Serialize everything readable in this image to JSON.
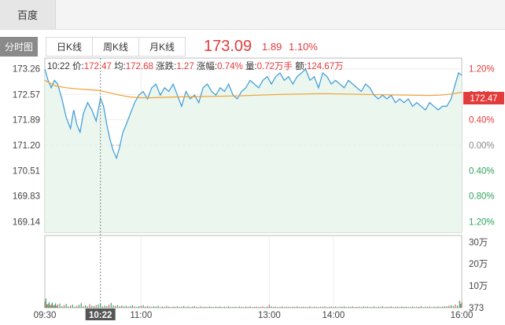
{
  "app_tab": "百度",
  "tabs": [
    "分时图",
    "日K线",
    "周K线",
    "月K线"
  ],
  "quote": {
    "price": "173.09",
    "change": "1.89",
    "change_pct": "1.10%"
  },
  "info": {
    "time": "10:22",
    "price_label": "价:",
    "price": "172.47",
    "avg_label": "均:",
    "avg": "172.68",
    "change_label": "涨跌:",
    "change": "1.27",
    "pct_label": "涨幅:",
    "pct": "0.74%",
    "volume_label": "量:",
    "volume": "0.72万手",
    "amount_label": "额:",
    "amount": "124.67万"
  },
  "chart_data": {
    "type": "line",
    "prev_close": 171.2,
    "ylim": [
      168.85,
      173.55
    ],
    "price_ticks": [
      "173.26",
      "172.57",
      "171.89",
      "171.20",
      "170.51",
      "169.83",
      "169.14"
    ],
    "price_tick_values": [
      173.26,
      172.57,
      171.89,
      171.2,
      170.51,
      169.83,
      169.14
    ],
    "pct_ticks": [
      "1.20%",
      "0.80%",
      "0.40%",
      "0.00%",
      "0.40%",
      "0.80%",
      "1.20%"
    ],
    "x_ticks": [
      "09:30",
      "11:00",
      "13:00",
      "14:00",
      "16:00"
    ],
    "x_tick_minutes": [
      0,
      90,
      210,
      270,
      390
    ],
    "cursor": {
      "minute": 52,
      "label": "10:22"
    },
    "current_price_tag": "172.47",
    "volume_ticks": [
      "30万",
      "20万",
      "10万",
      "373"
    ],
    "volume_tick_values": [
      300000,
      200000,
      100000,
      0
    ],
    "series": [
      {
        "role": "price",
        "color": "#3a9ad9",
        "x": [
          0,
          3,
          6,
          9,
          12,
          16,
          20,
          24,
          27,
          30,
          33,
          36,
          40,
          44,
          48,
          52,
          55,
          58,
          61,
          64,
          67,
          70,
          73,
          76,
          80,
          84,
          88,
          92,
          96,
          100,
          104,
          108,
          112,
          116,
          120,
          124,
          128,
          132,
          136,
          140,
          144,
          148,
          152,
          156,
          160,
          164,
          168,
          172,
          176,
          180,
          184,
          188,
          192,
          196,
          200,
          204,
          208,
          212,
          216,
          220,
          224,
          228,
          232,
          236,
          240,
          244,
          248,
          252,
          256,
          260,
          264,
          268,
          272,
          276,
          280,
          284,
          288,
          292,
          296,
          300,
          304,
          308,
          312,
          316,
          320,
          324,
          328,
          332,
          336,
          340,
          344,
          348,
          352,
          356,
          360,
          364,
          368,
          372,
          376,
          380,
          384,
          387,
          390
        ],
        "y": [
          173.25,
          172.95,
          172.75,
          172.95,
          172.85,
          172.45,
          171.95,
          171.65,
          172.15,
          171.75,
          171.55,
          172.05,
          172.35,
          172.15,
          171.85,
          172.47,
          172.25,
          171.75,
          171.35,
          171.05,
          170.85,
          171.15,
          171.55,
          171.75,
          172.05,
          172.35,
          172.55,
          172.65,
          172.45,
          172.75,
          172.85,
          172.55,
          172.75,
          172.65,
          172.85,
          172.55,
          172.25,
          172.65,
          172.45,
          172.55,
          172.35,
          172.75,
          172.85,
          172.65,
          172.55,
          172.75,
          172.65,
          172.85,
          172.55,
          172.45,
          172.65,
          172.75,
          172.95,
          172.85,
          172.75,
          172.95,
          173.05,
          172.85,
          173.05,
          173.15,
          172.95,
          173.05,
          172.85,
          173.05,
          173.15,
          173.25,
          172.95,
          173.05,
          172.75,
          173.15,
          173.05,
          172.85,
          172.95,
          172.85,
          172.75,
          172.95,
          172.85,
          172.75,
          172.65,
          172.85,
          172.75,
          172.55,
          172.45,
          172.55,
          172.45,
          172.55,
          172.35,
          172.45,
          172.35,
          172.45,
          172.25,
          172.35,
          172.25,
          172.15,
          172.35,
          172.25,
          172.15,
          172.25,
          172.25,
          172.45,
          172.85,
          173.15,
          173.09
        ]
      },
      {
        "role": "average",
        "color": "#f0a030",
        "x": [
          0,
          10,
          20,
          30,
          40,
          50,
          60,
          70,
          80,
          90,
          100,
          120,
          140,
          160,
          180,
          200,
          220,
          240,
          260,
          280,
          300,
          320,
          340,
          360,
          370,
          380,
          390
        ],
        "y": [
          172.95,
          172.8,
          172.75,
          172.72,
          172.7,
          172.68,
          172.62,
          172.55,
          172.5,
          172.48,
          172.48,
          172.5,
          172.51,
          172.52,
          172.53,
          172.55,
          172.57,
          172.58,
          172.59,
          172.58,
          172.57,
          172.56,
          172.55,
          172.54,
          172.55,
          172.58,
          172.63
        ]
      }
    ],
    "volume": [
      [
        0,
        28000
      ],
      [
        1,
        42000
      ],
      [
        2,
        14000
      ],
      [
        3,
        18000
      ],
      [
        4,
        26000
      ],
      [
        5,
        11000
      ],
      [
        6,
        16000
      ],
      [
        7,
        24000
      ],
      [
        8,
        9000
      ],
      [
        9,
        13000
      ],
      [
        10,
        20000
      ],
      [
        11,
        8000
      ],
      [
        12,
        15000
      ],
      [
        14,
        19000
      ],
      [
        16,
        7000
      ],
      [
        18,
        12000
      ],
      [
        20,
        17000
      ],
      [
        22,
        6000
      ],
      [
        24,
        10000
      ],
      [
        26,
        14000
      ],
      [
        28,
        5000
      ],
      [
        30,
        9000
      ],
      [
        32,
        13000
      ],
      [
        34,
        21000
      ],
      [
        36,
        8000
      ],
      [
        38,
        11000
      ],
      [
        40,
        6000
      ],
      [
        42,
        16000
      ],
      [
        44,
        9000
      ],
      [
        46,
        7000
      ],
      [
        48,
        12000
      ],
      [
        50,
        15000
      ],
      [
        52,
        18000
      ],
      [
        54,
        6000
      ],
      [
        56,
        10000
      ],
      [
        58,
        8000
      ],
      [
        60,
        14000
      ],
      [
        62,
        22000
      ],
      [
        64,
        11000
      ],
      [
        66,
        9000
      ],
      [
        68,
        12000
      ],
      [
        70,
        7000
      ],
      [
        72,
        10000
      ],
      [
        74,
        6000
      ],
      [
        76,
        9000
      ],
      [
        78,
        5000
      ],
      [
        80,
        8000
      ],
      [
        82,
        11000
      ],
      [
        84,
        6000
      ],
      [
        86,
        4000
      ],
      [
        88,
        7000
      ],
      [
        90,
        9000
      ],
      [
        92,
        12000
      ],
      [
        94,
        5000
      ],
      [
        96,
        8000
      ],
      [
        98,
        6000
      ],
      [
        100,
        4000
      ],
      [
        102,
        7000
      ],
      [
        104,
        5000
      ],
      [
        106,
        9000
      ],
      [
        108,
        3000
      ],
      [
        110,
        6000
      ],
      [
        112,
        4000
      ],
      [
        114,
        8000
      ],
      [
        116,
        5000
      ],
      [
        118,
        3000
      ],
      [
        120,
        6000
      ],
      [
        122,
        4000
      ],
      [
        124,
        7000
      ],
      [
        126,
        3000
      ],
      [
        128,
        5000
      ],
      [
        130,
        8000
      ],
      [
        132,
        4000
      ],
      [
        134,
        6000
      ],
      [
        136,
        3000
      ],
      [
        138,
        5000
      ],
      [
        140,
        7000
      ],
      [
        142,
        4000
      ],
      [
        144,
        3000
      ],
      [
        146,
        6000
      ],
      [
        148,
        4000
      ],
      [
        150,
        5000
      ],
      [
        152,
        3000
      ],
      [
        154,
        6000
      ],
      [
        156,
        4000
      ],
      [
        158,
        3000
      ],
      [
        160,
        5000
      ],
      [
        162,
        4000
      ],
      [
        164,
        6000
      ],
      [
        166,
        3000
      ],
      [
        168,
        5000
      ],
      [
        170,
        4000
      ],
      [
        172,
        7000
      ],
      [
        174,
        3000
      ],
      [
        176,
        4000
      ],
      [
        178,
        5000
      ],
      [
        180,
        3000
      ],
      [
        182,
        6000
      ],
      [
        184,
        4000
      ],
      [
        186,
        3000
      ],
      [
        188,
        5000
      ],
      [
        190,
        4000
      ],
      [
        192,
        6000
      ],
      [
        194,
        3000
      ],
      [
        196,
        4000
      ],
      [
        198,
        5000
      ],
      [
        200,
        3000
      ],
      [
        202,
        4000
      ],
      [
        204,
        6000
      ],
      [
        206,
        3000
      ],
      [
        208,
        5000
      ],
      [
        210,
        14000
      ],
      [
        212,
        6000
      ],
      [
        214,
        4000
      ],
      [
        216,
        5000
      ],
      [
        218,
        3000
      ],
      [
        220,
        4000
      ],
      [
        222,
        6000
      ],
      [
        224,
        3000
      ],
      [
        226,
        5000
      ],
      [
        228,
        4000
      ],
      [
        230,
        3000
      ],
      [
        232,
        5000
      ],
      [
        234,
        4000
      ],
      [
        236,
        6000
      ],
      [
        238,
        3000
      ],
      [
        240,
        4000
      ],
      [
        242,
        5000
      ],
      [
        244,
        3000
      ],
      [
        246,
        4000
      ],
      [
        248,
        6000
      ],
      [
        250,
        3000
      ],
      [
        252,
        5000
      ],
      [
        254,
        4000
      ],
      [
        256,
        3000
      ],
      [
        258,
        5000
      ],
      [
        260,
        4000
      ],
      [
        262,
        6000
      ],
      [
        264,
        3000
      ],
      [
        266,
        4000
      ],
      [
        268,
        5000
      ],
      [
        270,
        4000
      ],
      [
        272,
        6000
      ],
      [
        274,
        3000
      ],
      [
        276,
        5000
      ],
      [
        278,
        4000
      ],
      [
        280,
        7000
      ],
      [
        282,
        3000
      ],
      [
        284,
        5000
      ],
      [
        286,
        4000
      ],
      [
        288,
        6000
      ],
      [
        290,
        3000
      ],
      [
        292,
        4000
      ],
      [
        294,
        5000
      ],
      [
        296,
        3000
      ],
      [
        298,
        6000
      ],
      [
        300,
        4000
      ],
      [
        302,
        5000
      ],
      [
        304,
        3000
      ],
      [
        306,
        4000
      ],
      [
        308,
        6000
      ],
      [
        310,
        3000
      ],
      [
        312,
        5000
      ],
      [
        314,
        4000
      ],
      [
        316,
        7000
      ],
      [
        318,
        3000
      ],
      [
        320,
        5000
      ],
      [
        322,
        4000
      ],
      [
        324,
        6000
      ],
      [
        326,
        3000
      ],
      [
        328,
        4000
      ],
      [
        330,
        5000
      ],
      [
        332,
        3000
      ],
      [
        334,
        6000
      ],
      [
        336,
        4000
      ],
      [
        338,
        5000
      ],
      [
        340,
        3000
      ],
      [
        342,
        4000
      ],
      [
        344,
        6000
      ],
      [
        346,
        3000
      ],
      [
        348,
        5000
      ],
      [
        350,
        4000
      ],
      [
        352,
        7000
      ],
      [
        354,
        3000
      ],
      [
        356,
        5000
      ],
      [
        358,
        4000
      ],
      [
        360,
        6000
      ],
      [
        362,
        3000
      ],
      [
        364,
        5000
      ],
      [
        366,
        4000
      ],
      [
        368,
        6000
      ],
      [
        370,
        4000
      ],
      [
        372,
        5000
      ],
      [
        374,
        7000
      ],
      [
        376,
        6000
      ],
      [
        378,
        9000
      ],
      [
        380,
        12000
      ],
      [
        382,
        8000
      ],
      [
        384,
        15000
      ],
      [
        386,
        10000
      ],
      [
        388,
        32000
      ],
      [
        389,
        18000
      ],
      [
        390,
        26000
      ]
    ]
  }
}
